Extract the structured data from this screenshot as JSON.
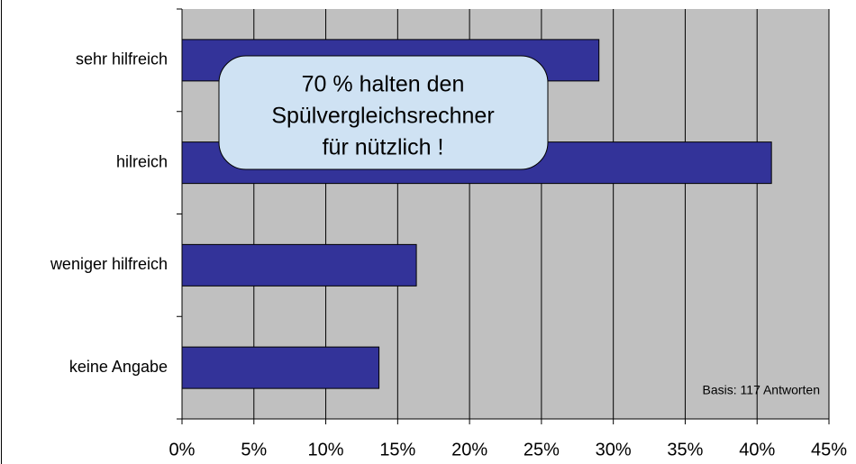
{
  "chart_data": {
    "type": "barh",
    "categories": [
      "sehr hilfreich",
      "hilreich",
      "weniger hilfreich",
      "keine Angabe"
    ],
    "values": [
      29,
      41,
      16.3,
      13.7
    ],
    "color": "#333399",
    "xlim": [
      0,
      45
    ],
    "xticks": [
      {
        "value": 0,
        "label": "0%"
      },
      {
        "value": 5,
        "label": "5%"
      },
      {
        "value": 10,
        "label": "10%"
      },
      {
        "value": 15,
        "label": "15%"
      },
      {
        "value": 20,
        "label": "20%"
      },
      {
        "value": 25,
        "label": "25%"
      },
      {
        "value": 30,
        "label": "30%"
      },
      {
        "value": 35,
        "label": "35%"
      },
      {
        "value": 40,
        "label": "40%"
      },
      {
        "value": 45,
        "label": "45%"
      }
    ],
    "grid": true,
    "callout": [
      "70 % halten den",
      "Spülvergleichsrechner",
      "für nützlich !"
    ],
    "note": "Basis: 117 Antworten"
  }
}
